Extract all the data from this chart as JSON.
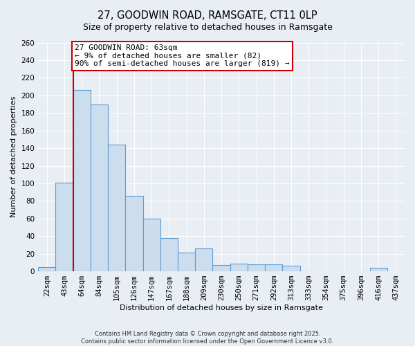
{
  "title": "27, GOODWIN ROAD, RAMSGATE, CT11 0LP",
  "subtitle": "Size of property relative to detached houses in Ramsgate",
  "xlabel": "Distribution of detached houses by size in Ramsgate",
  "ylabel": "Number of detached properties",
  "bar_labels": [
    "22sqm",
    "43sqm",
    "64sqm",
    "84sqm",
    "105sqm",
    "126sqm",
    "147sqm",
    "167sqm",
    "188sqm",
    "209sqm",
    "230sqm",
    "250sqm",
    "271sqm",
    "292sqm",
    "313sqm",
    "333sqm",
    "354sqm",
    "375sqm",
    "396sqm",
    "416sqm",
    "437sqm"
  ],
  "bar_values": [
    5,
    101,
    206,
    190,
    144,
    86,
    60,
    38,
    21,
    26,
    7,
    9,
    8,
    8,
    6,
    0,
    0,
    0,
    0,
    4,
    0
  ],
  "bar_color": "#ccdded",
  "bar_edge_color": "#5b9bd5",
  "ylim": [
    0,
    260
  ],
  "yticks": [
    0,
    20,
    40,
    60,
    80,
    100,
    120,
    140,
    160,
    180,
    200,
    220,
    240,
    260
  ],
  "vline_x_idx": 2,
  "vline_color": "#cc0000",
  "annotation_title": "27 GOODWIN ROAD: 63sqm",
  "annotation_line1": "← 9% of detached houses are smaller (82)",
  "annotation_line2": "90% of semi-detached houses are larger (819) →",
  "footer_line1": "Contains HM Land Registry data © Crown copyright and database right 2025.",
  "footer_line2": "Contains public sector information licensed under the Open Government Licence v3.0.",
  "bg_color": "#e8eef4",
  "plot_bg_color": "#e8eef4",
  "grid_color": "#ffffff",
  "title_fontsize": 10.5,
  "subtitle_fontsize": 9,
  "axis_label_fontsize": 8,
  "tick_fontsize": 7.5,
  "annotation_fontsize": 8
}
